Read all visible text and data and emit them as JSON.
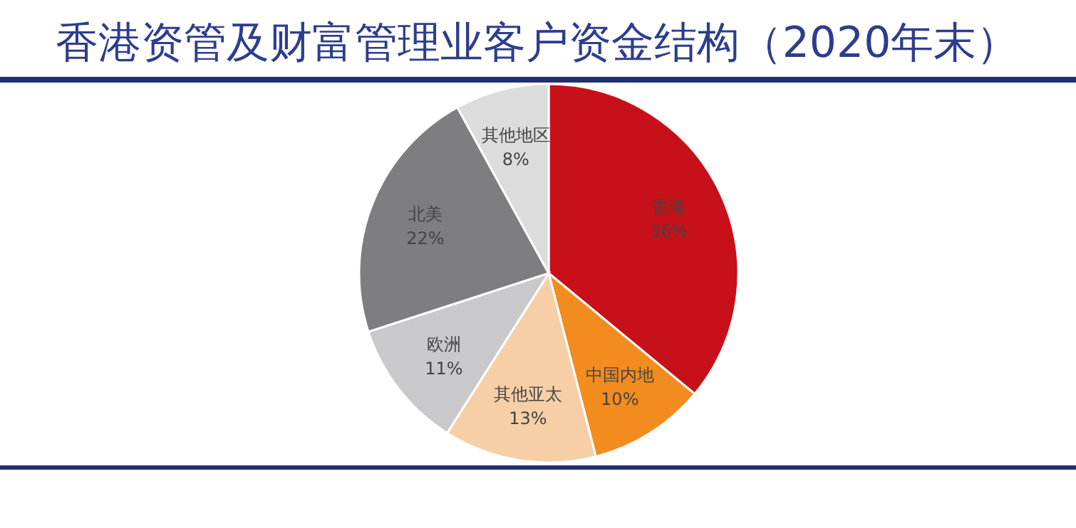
{
  "chart_data": {
    "type": "pie",
    "title": "香港资管及财富管理业客户资金结构（2020年末）",
    "categories": [
      "香港",
      "中国内地",
      "其他亚太",
      "欧洲",
      "北美",
      "其他地区"
    ],
    "values": [
      36,
      10,
      13,
      11,
      22,
      8
    ],
    "value_labels": [
      "36%",
      "10%",
      "13%",
      "11%",
      "22%",
      "8%"
    ],
    "colors": [
      "#c8101a",
      "#f28c1e",
      "#f7cfa6",
      "#c9c9cb",
      "#7e7e80",
      "#dcdcdc"
    ]
  }
}
